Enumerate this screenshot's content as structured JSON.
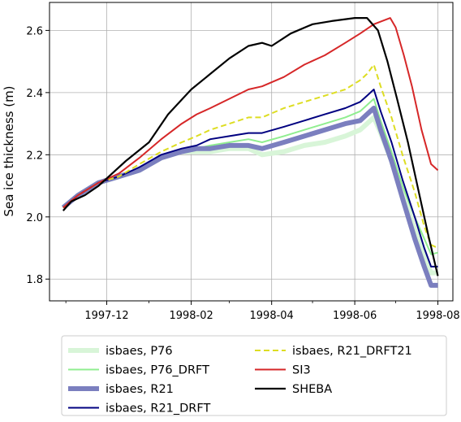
{
  "chart_data": {
    "type": "line",
    "title": "",
    "xlabel": "",
    "ylabel": "Sea ice thickness (m)",
    "xaxis_type": "date",
    "xlim": [
      "1997-10-20",
      "1998-08-12"
    ],
    "ylim": [
      1.73,
      2.69
    ],
    "x_ticks": [
      "1997-12-01",
      "1998-02-01",
      "1998-04-01",
      "1998-06-01",
      "1998-08-01"
    ],
    "x_tick_labels": [
      "1997-12",
      "1998-02",
      "1998-04",
      "1998-06",
      "1998-08"
    ],
    "y_ticks": [
      1.8,
      2.0,
      2.2,
      2.4,
      2.6
    ],
    "y_tick_labels": [
      "1.8",
      "2.0",
      "2.2",
      "2.4",
      "2.6"
    ],
    "grid": true,
    "legend_position": "below plot",
    "series": [
      {
        "name": "isbaes, P76",
        "color": "#d8f5d8",
        "style": "thick",
        "points": [
          [
            "1997-10-30",
            2.03
          ],
          [
            "1997-11-10",
            2.07
          ],
          [
            "1997-11-25",
            2.11
          ],
          [
            "1997-12-10",
            2.13
          ],
          [
            "1997-12-25",
            2.15
          ],
          [
            "1998-01-10",
            2.19
          ],
          [
            "1998-01-25",
            2.21
          ],
          [
            "1998-02-05",
            2.21
          ],
          [
            "1998-02-15",
            2.21
          ],
          [
            "1998-03-01",
            2.22
          ],
          [
            "1998-03-15",
            2.22
          ],
          [
            "1998-03-25",
            2.2
          ],
          [
            "1998-04-10",
            2.21
          ],
          [
            "1998-04-25",
            2.23
          ],
          [
            "1998-05-10",
            2.24
          ],
          [
            "1998-05-25",
            2.26
          ],
          [
            "1998-06-05",
            2.28
          ],
          [
            "1998-06-10",
            2.3
          ],
          [
            "1998-06-15",
            2.32
          ],
          [
            "1998-06-20",
            2.27
          ],
          [
            "1998-06-28",
            2.18
          ],
          [
            "1998-07-06",
            2.08
          ],
          [
            "1998-07-15",
            1.96
          ],
          [
            "1998-07-22",
            1.88
          ],
          [
            "1998-07-27",
            1.82
          ],
          [
            "1998-08-01",
            1.82
          ]
        ]
      },
      {
        "name": "isbaes, P76_DRFT",
        "color": "#90ee90",
        "style": "solid",
        "points": [
          [
            "1997-10-30",
            2.03
          ],
          [
            "1997-11-10",
            2.07
          ],
          [
            "1997-11-25",
            2.11
          ],
          [
            "1997-12-10",
            2.13
          ],
          [
            "1997-12-25",
            2.16
          ],
          [
            "1998-01-10",
            2.19
          ],
          [
            "1998-01-25",
            2.21
          ],
          [
            "1998-02-05",
            2.22
          ],
          [
            "1998-02-15",
            2.23
          ],
          [
            "1998-03-01",
            2.24
          ],
          [
            "1998-03-15",
            2.25
          ],
          [
            "1998-03-25",
            2.24
          ],
          [
            "1998-04-10",
            2.26
          ],
          [
            "1998-04-25",
            2.28
          ],
          [
            "1998-05-10",
            2.3
          ],
          [
            "1998-05-25",
            2.32
          ],
          [
            "1998-06-05",
            2.34
          ],
          [
            "1998-06-10",
            2.36
          ],
          [
            "1998-06-15",
            2.38
          ],
          [
            "1998-06-20",
            2.31
          ],
          [
            "1998-06-28",
            2.21
          ],
          [
            "1998-07-06",
            2.1
          ],
          [
            "1998-07-15",
            2.0
          ],
          [
            "1998-07-22",
            1.93
          ],
          [
            "1998-07-27",
            1.88
          ],
          [
            "1998-08-01",
            1.885
          ]
        ]
      },
      {
        "name": "isbaes, R21",
        "color": "#7b7fbf",
        "style": "thick",
        "points": [
          [
            "1997-10-30",
            2.03
          ],
          [
            "1997-11-10",
            2.07
          ],
          [
            "1997-11-25",
            2.11
          ],
          [
            "1997-12-10",
            2.13
          ],
          [
            "1997-12-25",
            2.15
          ],
          [
            "1998-01-10",
            2.19
          ],
          [
            "1998-01-25",
            2.21
          ],
          [
            "1998-02-05",
            2.22
          ],
          [
            "1998-02-15",
            2.22
          ],
          [
            "1998-03-01",
            2.23
          ],
          [
            "1998-03-15",
            2.23
          ],
          [
            "1998-03-25",
            2.22
          ],
          [
            "1998-04-10",
            2.24
          ],
          [
            "1998-04-25",
            2.26
          ],
          [
            "1998-05-10",
            2.28
          ],
          [
            "1998-05-25",
            2.3
          ],
          [
            "1998-06-05",
            2.31
          ],
          [
            "1998-06-10",
            2.33
          ],
          [
            "1998-06-15",
            2.35
          ],
          [
            "1998-06-20",
            2.28
          ],
          [
            "1998-06-28",
            2.18
          ],
          [
            "1998-07-06",
            2.06
          ],
          [
            "1998-07-15",
            1.93
          ],
          [
            "1998-07-22",
            1.84
          ],
          [
            "1998-07-27",
            1.78
          ],
          [
            "1998-08-01",
            1.78
          ]
        ]
      },
      {
        "name": "isbaes, R21_DRFT",
        "color": "#000080",
        "style": "solid",
        "points": [
          [
            "1997-10-30",
            2.03
          ],
          [
            "1997-11-10",
            2.07
          ],
          [
            "1997-11-25",
            2.11
          ],
          [
            "1997-12-10",
            2.13
          ],
          [
            "1997-12-25",
            2.16
          ],
          [
            "1998-01-10",
            2.2
          ],
          [
            "1998-01-25",
            2.22
          ],
          [
            "1998-02-05",
            2.23
          ],
          [
            "1998-02-15",
            2.25
          ],
          [
            "1998-03-01",
            2.26
          ],
          [
            "1998-03-15",
            2.27
          ],
          [
            "1998-03-25",
            2.27
          ],
          [
            "1998-04-10",
            2.29
          ],
          [
            "1998-04-25",
            2.31
          ],
          [
            "1998-05-10",
            2.33
          ],
          [
            "1998-05-25",
            2.35
          ],
          [
            "1998-06-05",
            2.37
          ],
          [
            "1998-06-10",
            2.39
          ],
          [
            "1998-06-15",
            2.41
          ],
          [
            "1998-06-20",
            2.34
          ],
          [
            "1998-06-28",
            2.24
          ],
          [
            "1998-07-06",
            2.12
          ],
          [
            "1998-07-15",
            2.0
          ],
          [
            "1998-07-22",
            1.9
          ],
          [
            "1998-07-27",
            1.84
          ],
          [
            "1998-08-01",
            1.84
          ]
        ]
      },
      {
        "name": "isbaes, R21_DRFT21",
        "color": "#dddd22",
        "style": "dashed",
        "points": [
          [
            "1997-10-30",
            2.03
          ],
          [
            "1997-11-10",
            2.07
          ],
          [
            "1997-11-25",
            2.11
          ],
          [
            "1997-12-10",
            2.13
          ],
          [
            "1997-12-25",
            2.17
          ],
          [
            "1998-01-10",
            2.21
          ],
          [
            "1998-01-25",
            2.24
          ],
          [
            "1998-02-05",
            2.26
          ],
          [
            "1998-02-15",
            2.28
          ],
          [
            "1998-03-01",
            2.3
          ],
          [
            "1998-03-15",
            2.32
          ],
          [
            "1998-03-25",
            2.32
          ],
          [
            "1998-04-10",
            2.35
          ],
          [
            "1998-04-25",
            2.37
          ],
          [
            "1998-05-10",
            2.39
          ],
          [
            "1998-05-25",
            2.41
          ],
          [
            "1998-06-05",
            2.44
          ],
          [
            "1998-06-10",
            2.46
          ],
          [
            "1998-06-15",
            2.49
          ],
          [
            "1998-06-20",
            2.42
          ],
          [
            "1998-06-28",
            2.32
          ],
          [
            "1998-07-06",
            2.2
          ],
          [
            "1998-07-15",
            2.08
          ],
          [
            "1998-07-22",
            1.97
          ],
          [
            "1998-07-27",
            1.91
          ],
          [
            "1998-08-01",
            1.9
          ]
        ]
      },
      {
        "name": "SI3",
        "color": "#d62728",
        "style": "solid",
        "points": [
          [
            "1997-10-30",
            2.03
          ],
          [
            "1997-11-10",
            2.07
          ],
          [
            "1997-11-25",
            2.11
          ],
          [
            "1997-12-10",
            2.14
          ],
          [
            "1997-12-25",
            2.19
          ],
          [
            "1998-01-10",
            2.25
          ],
          [
            "1998-01-25",
            2.3
          ],
          [
            "1998-02-05",
            2.33
          ],
          [
            "1998-02-15",
            2.35
          ],
          [
            "1998-03-01",
            2.38
          ],
          [
            "1998-03-15",
            2.41
          ],
          [
            "1998-03-25",
            2.42
          ],
          [
            "1998-04-10",
            2.45
          ],
          [
            "1998-04-25",
            2.49
          ],
          [
            "1998-05-10",
            2.52
          ],
          [
            "1998-05-25",
            2.56
          ],
          [
            "1998-06-05",
            2.59
          ],
          [
            "1998-06-15",
            2.62
          ],
          [
            "1998-06-27",
            2.64
          ],
          [
            "1998-07-01",
            2.61
          ],
          [
            "1998-07-07",
            2.52
          ],
          [
            "1998-07-13",
            2.42
          ],
          [
            "1998-07-20",
            2.28
          ],
          [
            "1998-07-27",
            2.17
          ],
          [
            "1998-08-01",
            2.15
          ]
        ]
      },
      {
        "name": "SHEBA",
        "color": "#000000",
        "style": "solid",
        "points": [
          [
            "1997-10-30",
            2.02
          ],
          [
            "1997-11-05",
            2.05
          ],
          [
            "1997-11-15",
            2.07
          ],
          [
            "1997-11-25",
            2.1
          ],
          [
            "1997-12-05",
            2.14
          ],
          [
            "1997-12-15",
            2.18
          ],
          [
            "1998-01-01",
            2.24
          ],
          [
            "1998-01-15",
            2.33
          ],
          [
            "1998-02-01",
            2.41
          ],
          [
            "1998-02-15",
            2.46
          ],
          [
            "1998-03-01",
            2.51
          ],
          [
            "1998-03-15",
            2.55
          ],
          [
            "1998-03-25",
            2.56
          ],
          [
            "1998-04-01",
            2.55
          ],
          [
            "1998-04-15",
            2.59
          ],
          [
            "1998-05-01",
            2.62
          ],
          [
            "1998-05-15",
            2.63
          ],
          [
            "1998-06-01",
            2.64
          ],
          [
            "1998-06-10",
            2.64
          ],
          [
            "1998-06-18",
            2.6
          ],
          [
            "1998-06-25",
            2.5
          ],
          [
            "1998-07-02",
            2.38
          ],
          [
            "1998-07-10",
            2.24
          ],
          [
            "1998-07-18",
            2.08
          ],
          [
            "1998-07-25",
            1.94
          ],
          [
            "1998-08-01",
            1.81
          ]
        ]
      }
    ]
  }
}
